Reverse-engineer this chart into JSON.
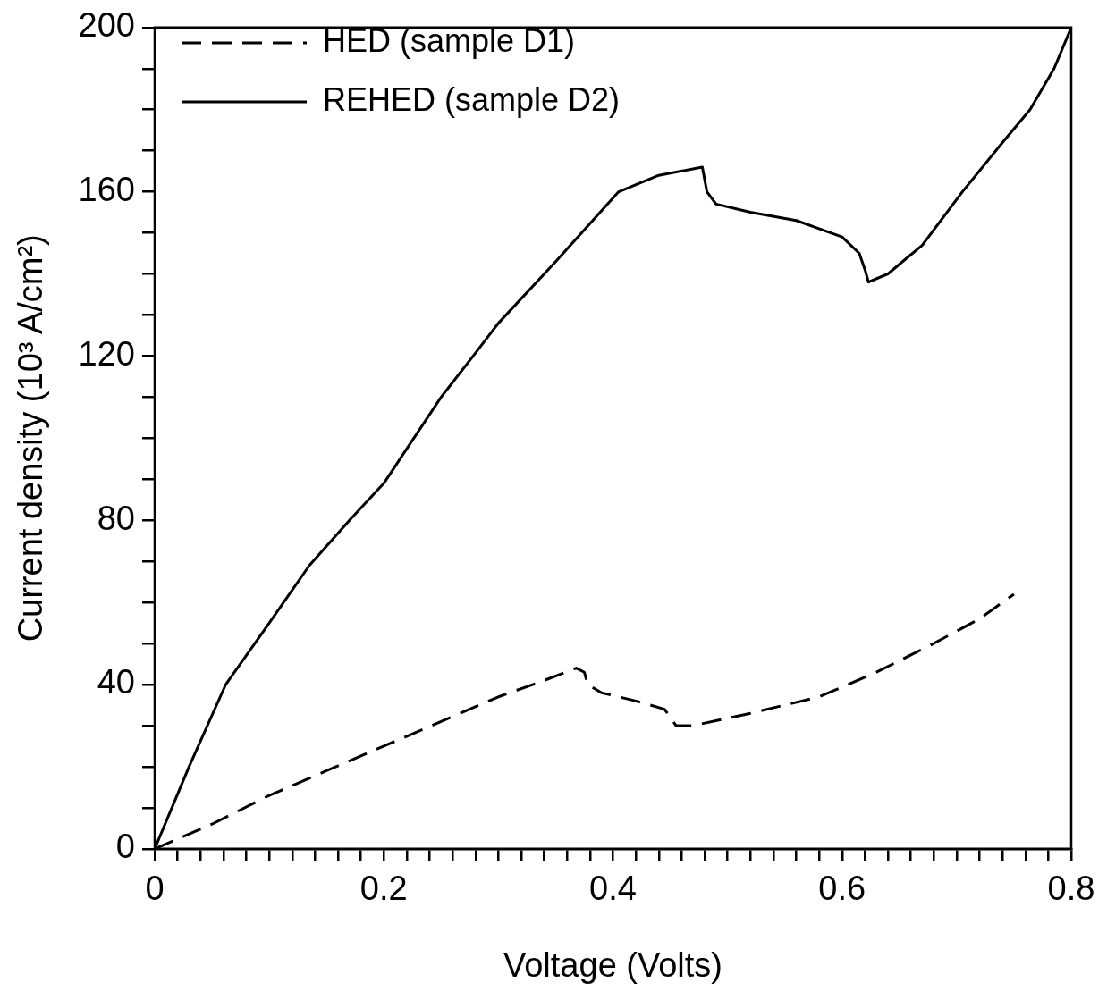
{
  "chart_data": {
    "type": "line",
    "xlabel": "Voltage (Volts)",
    "ylabel": "Current density (10³ A/cm²)",
    "xlim": [
      0,
      0.8
    ],
    "ylim": [
      0,
      200
    ],
    "xticks": [
      0,
      {
        "value": 0.02,
        "label": null
      },
      {
        "value": 0.04,
        "label": null
      },
      {
        "value": 0.06,
        "label": null
      },
      {
        "value": 0.08,
        "label": null
      },
      {
        "value": 0.1,
        "label": null
      },
      {
        "value": 0.12,
        "label": null
      },
      {
        "value": 0.14,
        "label": null
      },
      {
        "value": 0.16,
        "label": null
      },
      {
        "value": 0.18,
        "label": null
      },
      0.2,
      {
        "value": 0.22,
        "label": null
      },
      {
        "value": 0.24,
        "label": null
      },
      {
        "value": 0.26,
        "label": null
      },
      {
        "value": 0.28,
        "label": null
      },
      {
        "value": 0.3,
        "label": null
      },
      {
        "value": 0.32,
        "label": null
      },
      {
        "value": 0.34,
        "label": null
      },
      {
        "value": 0.36,
        "label": null
      },
      {
        "value": 0.38,
        "label": null
      },
      0.4,
      {
        "value": 0.42,
        "label": null
      },
      {
        "value": 0.44,
        "label": null
      },
      {
        "value": 0.46,
        "label": null
      },
      {
        "value": 0.48,
        "label": null
      },
      {
        "value": 0.5,
        "label": null
      },
      {
        "value": 0.52,
        "label": null
      },
      {
        "value": 0.54,
        "label": null
      },
      {
        "value": 0.56,
        "label": null
      },
      {
        "value": 0.58,
        "label": null
      },
      0.6,
      {
        "value": 0.62,
        "label": null
      },
      {
        "value": 0.64,
        "label": null
      },
      {
        "value": 0.66,
        "label": null
      },
      {
        "value": 0.68,
        "label": null
      },
      {
        "value": 0.7,
        "label": null
      },
      {
        "value": 0.72,
        "label": null
      },
      {
        "value": 0.74,
        "label": null
      },
      {
        "value": 0.76,
        "label": null
      },
      {
        "value": 0.78,
        "label": null
      },
      0.8
    ],
    "yticks": [
      0,
      {
        "value": 10,
        "label": null
      },
      {
        "value": 20,
        "label": null
      },
      {
        "value": 30,
        "label": null
      },
      40,
      {
        "value": 50,
        "label": null
      },
      {
        "value": 60,
        "label": null
      },
      {
        "value": 70,
        "label": null
      },
      80,
      {
        "value": 90,
        "label": null
      },
      {
        "value": 100,
        "label": null
      },
      {
        "value": 110,
        "label": null
      },
      120,
      {
        "value": 130,
        "label": null
      },
      {
        "value": 140,
        "label": null
      },
      {
        "value": 150,
        "label": null
      },
      160,
      {
        "value": 170,
        "label": null
      },
      {
        "value": 180,
        "label": null
      },
      {
        "value": 190,
        "label": null
      },
      200
    ],
    "legend": "top left",
    "marker": "none",
    "series": [
      {
        "name": "HED (sample D1)",
        "color": "#000000",
        "line_style": "dashed",
        "x": [
          0,
          0.05,
          0.1,
          0.15,
          0.2,
          0.25,
          0.3,
          0.34,
          0.368,
          0.375,
          0.378,
          0.39,
          0.42,
          0.445,
          0.455,
          0.47,
          0.52,
          0.58,
          0.63,
          0.68,
          0.72,
          0.75
        ],
        "values": [
          0,
          6,
          13,
          19,
          25,
          31,
          37,
          41,
          44,
          43,
          40,
          38,
          36,
          34,
          30,
          30,
          33,
          37,
          43,
          50,
          56,
          62
        ]
      },
      {
        "name": "REHED (sample D2)",
        "color": "#000000",
        "line_style": "solid",
        "x": [
          0,
          0.03,
          0.062,
          0.1,
          0.135,
          0.17,
          0.2,
          0.25,
          0.278,
          0.3,
          0.35,
          0.405,
          0.44,
          0.478,
          0.482,
          0.49,
          0.52,
          0.56,
          0.6,
          0.615,
          0.62,
          0.623,
          0.64,
          0.67,
          0.705,
          0.74,
          0.764,
          0.785,
          0.8
        ],
        "values": [
          0,
          20,
          40,
          55,
          69,
          80,
          89,
          110,
          120,
          128,
          143,
          160,
          164,
          166,
          160,
          157,
          155,
          153,
          149,
          145,
          141,
          138,
          140,
          147,
          160,
          172,
          180,
          190,
          200
        ]
      }
    ]
  }
}
